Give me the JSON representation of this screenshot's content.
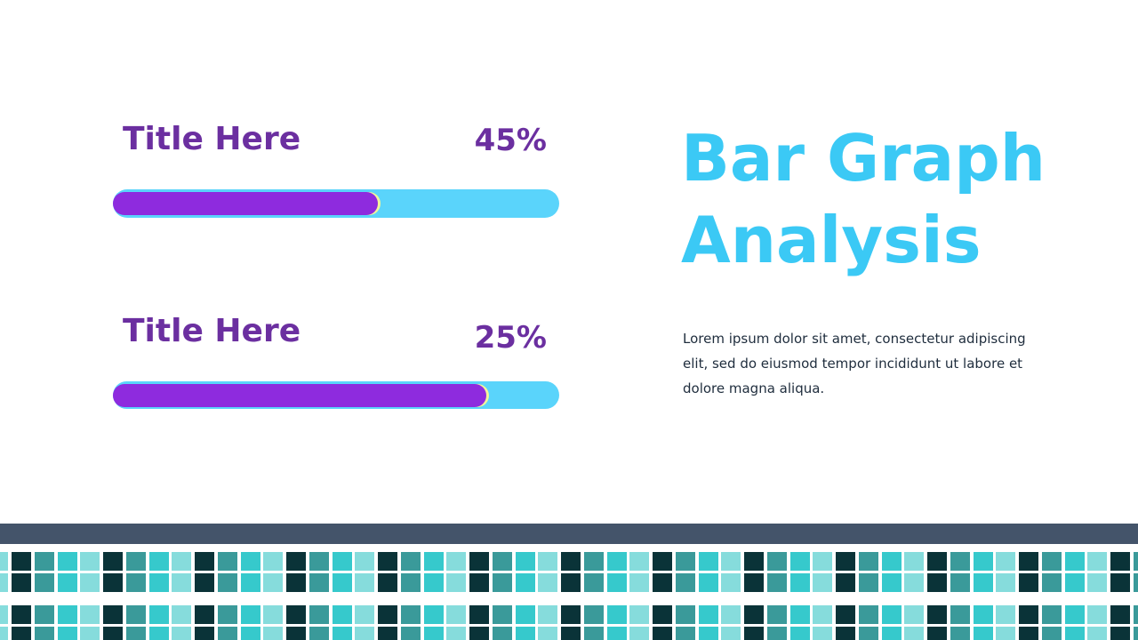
{
  "items": [
    {
      "title": "Title Here",
      "value": "45%"
    },
    {
      "title": "Title Here",
      "value": "25%"
    }
  ],
  "heading": {
    "line1": "Bar Graph",
    "line2": "Analysis"
  },
  "body": "Lorem ipsum dolor sit amet, consectetur adipiscing elit, sed do eiusmod tempor incididunt ut labore et dolore magna aliqua."
}
